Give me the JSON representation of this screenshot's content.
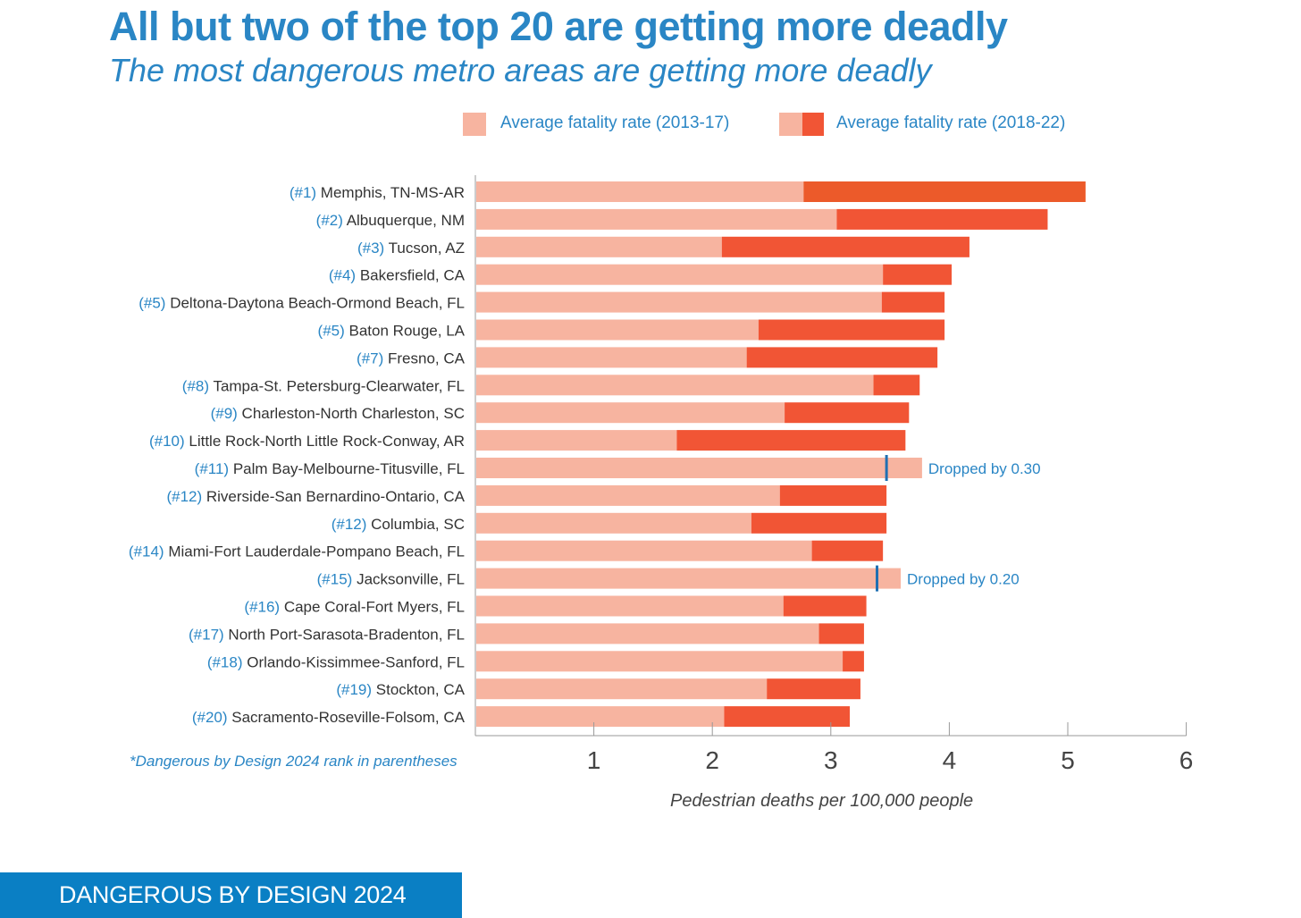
{
  "title": "All but two of the top 20 are getting more deadly",
  "subtitle": "The most dangerous metro areas are getting more deadly",
  "footnote": "*Dangerous by Design 2024 rank in parentheses",
  "banner": "DANGEROUS BY DESIGN 2024",
  "colors": {
    "old": "#f7b4a0",
    "new": "#f15535",
    "new_top": "#ec5a2a",
    "accent": "#2a86c5",
    "banner": "#0a7fc4"
  },
  "chart_data": {
    "type": "bar",
    "orientation": "horizontal",
    "xlabel": "Pedestrian deaths per 100,000 people",
    "xlim": [
      0,
      6
    ],
    "xticks": [
      "1",
      "2",
      "3",
      "4",
      "5",
      "6"
    ],
    "legend": [
      {
        "name": "Average fatality rate (2013-17)",
        "swatch": "old"
      },
      {
        "name": "Average fatality rate (2018-22)",
        "swatch": "new"
      }
    ],
    "categories": [
      {
        "rank": "(#1)",
        "city": "Memphis, TN-MS-AR"
      },
      {
        "rank": "(#2)",
        "city": "Albuquerque, NM"
      },
      {
        "rank": "(#3)",
        "city": "Tucson, AZ"
      },
      {
        "rank": "(#4)",
        "city": "Bakersfield, CA"
      },
      {
        "rank": "(#5)",
        "city": "Deltona-Daytona Beach-Ormond Beach, FL"
      },
      {
        "rank": "(#5)",
        "city": "Baton Rouge, LA"
      },
      {
        "rank": "(#7)",
        "city": "Fresno, CA"
      },
      {
        "rank": "(#8)",
        "city": "Tampa-St. Petersburg-Clearwater, FL"
      },
      {
        "rank": "(#9)",
        "city": "Charleston-North Charleston, SC"
      },
      {
        "rank": "(#10)",
        "city": "Little Rock-North Little Rock-Conway, AR"
      },
      {
        "rank": "(#11)",
        "city": "Palm Bay-Melbourne-Titusville, FL"
      },
      {
        "rank": "(#12)",
        "city": "Riverside-San Bernardino-Ontario, CA"
      },
      {
        "rank": "(#12)",
        "city": "Columbia, SC"
      },
      {
        "rank": "(#14)",
        "city": "Miami-Fort Lauderdale-Pompano Beach, FL"
      },
      {
        "rank": "(#15)",
        "city": "Jacksonville, FL"
      },
      {
        "rank": "(#16)",
        "city": "Cape Coral-Fort Myers, FL"
      },
      {
        "rank": "(#17)",
        "city": "North Port-Sarasota-Bradenton, FL"
      },
      {
        "rank": "(#18)",
        "city": "Orlando-Kissimmee-Sanford, FL"
      },
      {
        "rank": "(#19)",
        "city": "Stockton, CA"
      },
      {
        "rank": "(#20)",
        "city": "Sacramento-Roseville-Folsom, CA"
      }
    ],
    "series": [
      {
        "name": "Average fatality rate (2013-17)",
        "values": [
          2.77,
          3.05,
          2.08,
          3.44,
          3.43,
          2.39,
          2.29,
          3.36,
          2.61,
          1.7,
          3.77,
          2.57,
          2.33,
          2.84,
          3.59,
          2.6,
          2.9,
          3.1,
          2.46,
          2.1
        ]
      },
      {
        "name": "Average fatality rate (2018-22)",
        "values": [
          5.15,
          4.83,
          4.17,
          4.02,
          3.96,
          3.96,
          3.9,
          3.75,
          3.66,
          3.63,
          3.47,
          3.47,
          3.47,
          3.44,
          3.39,
          3.3,
          3.28,
          3.28,
          3.25,
          3.16
        ]
      }
    ],
    "annotations": [
      {
        "row": 10,
        "text": "Dropped by 0.30"
      },
      {
        "row": 14,
        "text": "Dropped by 0.20"
      }
    ]
  }
}
